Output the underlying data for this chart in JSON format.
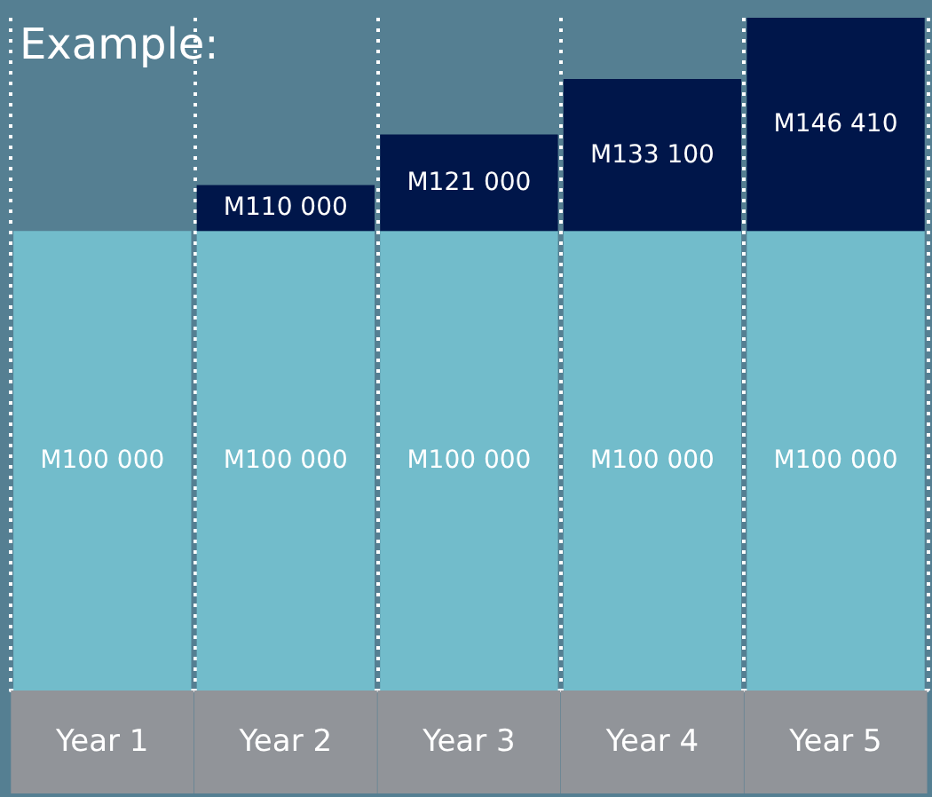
{
  "chart_data": {
    "type": "bar",
    "title": "Example:",
    "categories": [
      "Year 1",
      "Year 2",
      "Year 3",
      "Year 4",
      "Year 5"
    ],
    "stacked": true,
    "grid": "x",
    "series": [
      {
        "color": "#72bccb",
        "values": [
          100000,
          100000,
          100000,
          100000,
          100000
        ],
        "value_labels": [
          "M100 000",
          "M100 000",
          "M100 000",
          "M100 000",
          "M100 000"
        ]
      },
      {
        "color": "#00164a",
        "values": [
          null,
          10000,
          21000,
          33100,
          46410
        ],
        "value_labels": [
          null,
          "M110 000",
          "M121 000",
          "M133 100",
          "M146 410"
        ]
      }
    ]
  }
}
